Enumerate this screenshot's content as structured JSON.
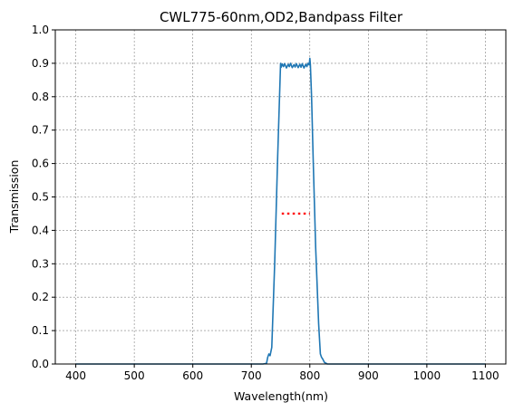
{
  "chart_data": {
    "type": "line",
    "title": "CWL775-60nm,OD2,Bandpass Filter",
    "xlabel": "Wavelength(nm)",
    "ylabel": "Transmission",
    "xlim": [
      365,
      1135
    ],
    "ylim": [
      0,
      1.0
    ],
    "xticks": [
      400,
      500,
      600,
      700,
      800,
      900,
      1000,
      1100
    ],
    "yticks": [
      0.0,
      0.1,
      0.2,
      0.3,
      0.4,
      0.5,
      0.6,
      0.7,
      0.8,
      0.9,
      1.0
    ],
    "xtick_labels": [
      "400",
      "500",
      "600",
      "700",
      "800",
      "900",
      "1000",
      "1100"
    ],
    "ytick_labels": [
      "0.0",
      "0.1",
      "0.2",
      "0.3",
      "0.4",
      "0.5",
      "0.6",
      "0.7",
      "0.8",
      "0.9",
      "1.0"
    ],
    "grid": true,
    "series": [
      {
        "color": "#1f77b4",
        "style": "solid",
        "x": [
          400,
          700,
          720,
          726,
          728,
          730,
          732,
          735,
          740,
          745,
          750,
          751,
          753,
          755,
          757,
          760,
          763,
          765,
          767,
          770,
          773,
          775,
          777,
          780,
          783,
          785,
          787,
          790,
          793,
          795,
          797,
          799,
          800,
          801,
          803,
          806,
          810,
          815,
          818,
          820,
          822,
          825,
          830,
          900,
          1000,
          1100
        ],
        "y": [
          0.0,
          0.0,
          0.0,
          0.002,
          0.02,
          0.03,
          0.025,
          0.05,
          0.3,
          0.62,
          0.9,
          0.888,
          0.898,
          0.89,
          0.899,
          0.886,
          0.897,
          0.89,
          0.9,
          0.887,
          0.896,
          0.889,
          0.899,
          0.887,
          0.897,
          0.888,
          0.899,
          0.886,
          0.897,
          0.89,
          0.9,
          0.895,
          0.915,
          0.895,
          0.8,
          0.6,
          0.35,
          0.12,
          0.03,
          0.02,
          0.015,
          0.005,
          0.0,
          0.0,
          0.0,
          0.0
        ]
      },
      {
        "color": "#ff0000",
        "style": "dotted",
        "x": [
          752,
          800
        ],
        "y": [
          0.45,
          0.45
        ]
      }
    ]
  }
}
